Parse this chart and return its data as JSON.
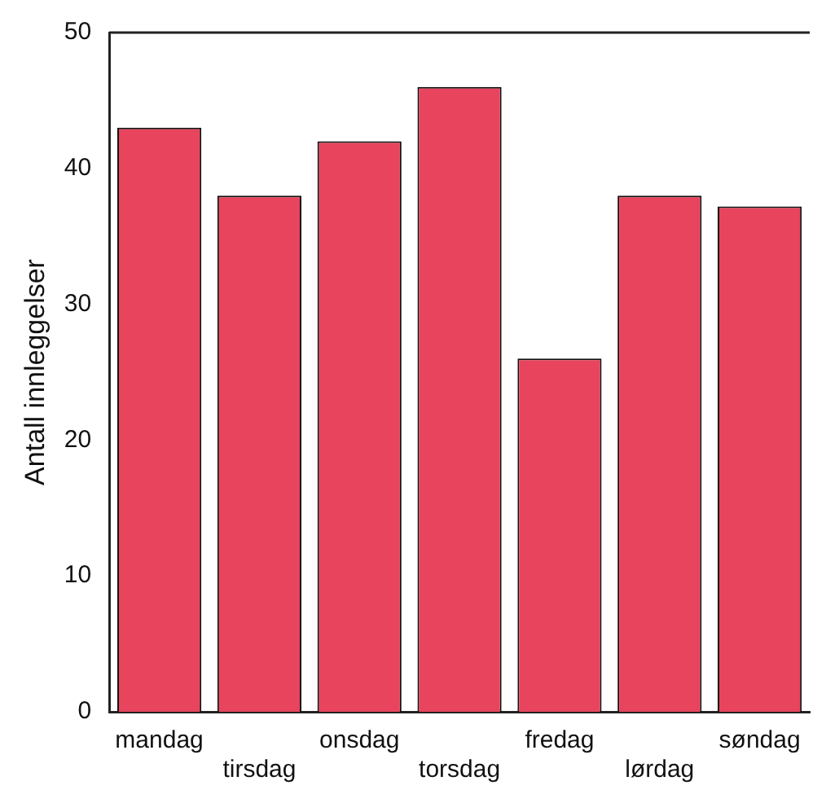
{
  "chart_data": {
    "type": "bar",
    "ylabel": "Antall innleggelser",
    "categories": [
      "mandag",
      "tirsdag",
      "onsdag",
      "torsdag",
      "fredag",
      "lørdag",
      "søndag"
    ],
    "values": [
      43,
      38,
      42,
      46,
      26,
      38,
      37.2
    ],
    "color": "#e8445e",
    "ylim": [
      0,
      50
    ],
    "yticks": [
      0,
      10,
      20,
      30,
      40,
      50
    ],
    "grid": false,
    "legend": false
  }
}
